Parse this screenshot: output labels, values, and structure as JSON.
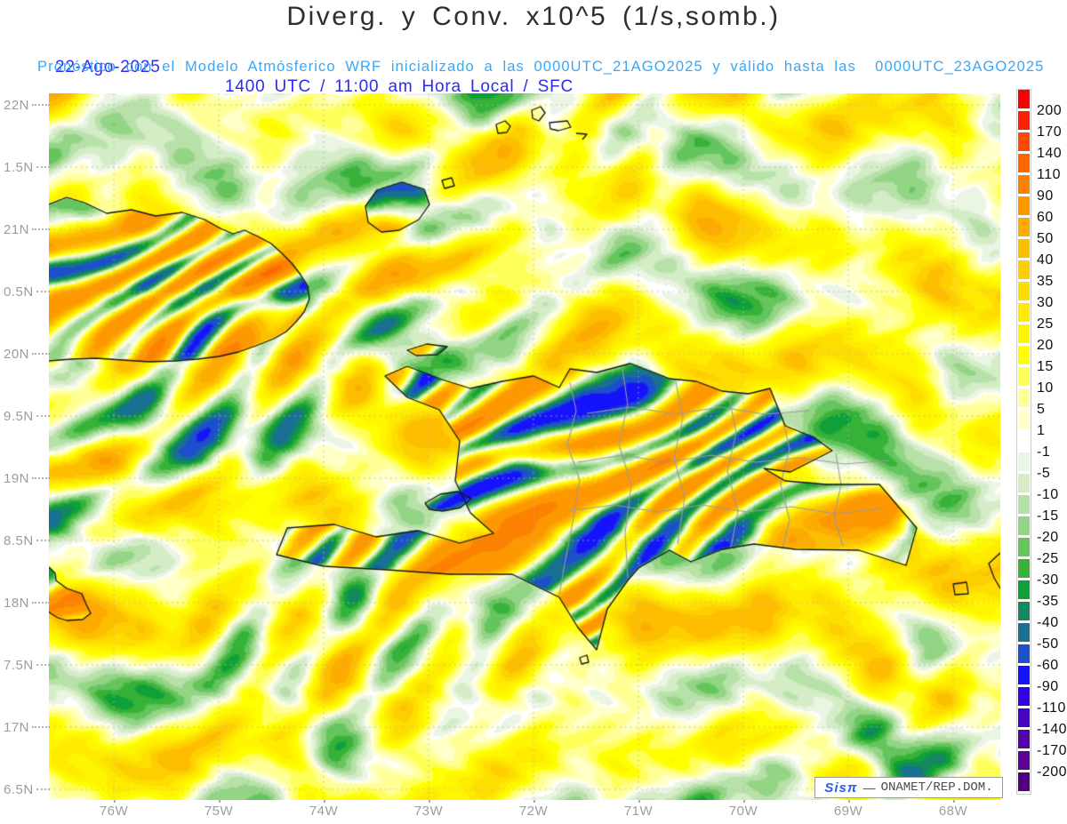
{
  "title": "Diverg. y Conv. x10^5 (1/s,somb.)",
  "header": {
    "date": "22-Ago-2025",
    "time_line": "1400 UTC / 11:00 am Hora Local / SFC",
    "forecast_line": "Pronóstico con el Modelo Atmósferico WRF inicializado a las 0000UTC_21AGO2025 y válido hasta las  0000UTC_23AGO2025"
  },
  "axes": {
    "lat_labels": [
      "22N",
      "1.5N",
      "21N",
      "0.5N",
      "20N",
      "9.5N",
      "19N",
      "8.5N",
      "18N",
      "7.5N",
      "17N",
      "6.5N"
    ],
    "lon_labels": [
      "76W",
      "75W",
      "74W",
      "73W",
      "72W",
      "71W",
      "70W",
      "69W",
      "68W"
    ]
  },
  "colorbar": {
    "tick_labels": [
      "200",
      "170",
      "140",
      "110",
      "90",
      "60",
      "50",
      "40",
      "35",
      "30",
      "25",
      "20",
      "15",
      "10",
      "5",
      "1",
      "-1",
      "-5",
      "-10",
      "-15",
      "-20",
      "-25",
      "-30",
      "-35",
      "-40",
      "-50",
      "-60",
      "-90",
      "-110",
      "-140",
      "-170",
      "-200"
    ],
    "segment_colors": [
      "#fb0000",
      "#fc2100",
      "#fc4a00",
      "#fd6700",
      "#fd8100",
      "#fd9800",
      "#fdab00",
      "#febe00",
      "#fecf00",
      "#fede00",
      "#feeb00",
      "#fef600",
      "#ffff00",
      "#ffff5a",
      "#ffff96",
      "#ffffc8",
      "#ffffff",
      "#eaf5e3",
      "#d4edc7",
      "#b7e1a9",
      "#92d584",
      "#64c45d",
      "#35b237",
      "#0fa039",
      "#13875f",
      "#187092",
      "#1c4fcb",
      "#1513fb",
      "#3202e6",
      "#4703c2",
      "#5503a4",
      "#5c0292",
      "#4f0280"
    ]
  },
  "watermark": {
    "brand": "Sisπ",
    "separator": "—",
    "org": "ONAMET/REP.DOM."
  },
  "colors": {
    "title_text": "#2e2e2e",
    "datetime_text": "#2b2bf2",
    "forecast_text": "#38a7f8",
    "axis_label": "#9d9d9d",
    "colorbar_label": "#111111",
    "coastline": "#161616",
    "province_border": "#9c9c9c",
    "gridline": "#b3b3b3",
    "watermark_brand": "#2f5be8",
    "watermark_text": "#4a4a4a"
  },
  "chart_data": {
    "type": "heatmap",
    "title": "Diverg. y Conv. x10^5 (1/s,somb.)",
    "units": "1/s (x10^5), sombreado",
    "level": "SFC",
    "valid_datetime": "22-Ago-2025 1400 UTC / 11:00 am Hora Local",
    "model": "WRF",
    "initialized": "0000UTC_21AGO2025",
    "valid_until": "0000UTC_23AGO2025",
    "x_ticks": [
      "76W",
      "75W",
      "74W",
      "73W",
      "72W",
      "71W",
      "70W",
      "69W",
      "68W"
    ],
    "y_ticks": [
      "22N",
      "1.5N",
      "21N",
      "0.5N",
      "20N",
      "9.5N",
      "19N",
      "8.5N",
      "18N",
      "7.5N",
      "17N",
      "6.5N"
    ],
    "colorbar_levels": [
      200,
      170,
      140,
      110,
      90,
      60,
      50,
      40,
      35,
      30,
      25,
      20,
      15,
      10,
      5,
      1,
      -1,
      -5,
      -10,
      -15,
      -20,
      -25,
      -30,
      -35,
      -40,
      -50,
      -60,
      -90,
      -110,
      -140,
      -170,
      -200
    ],
    "legend_position": "right",
    "grid": "dotted"
  }
}
